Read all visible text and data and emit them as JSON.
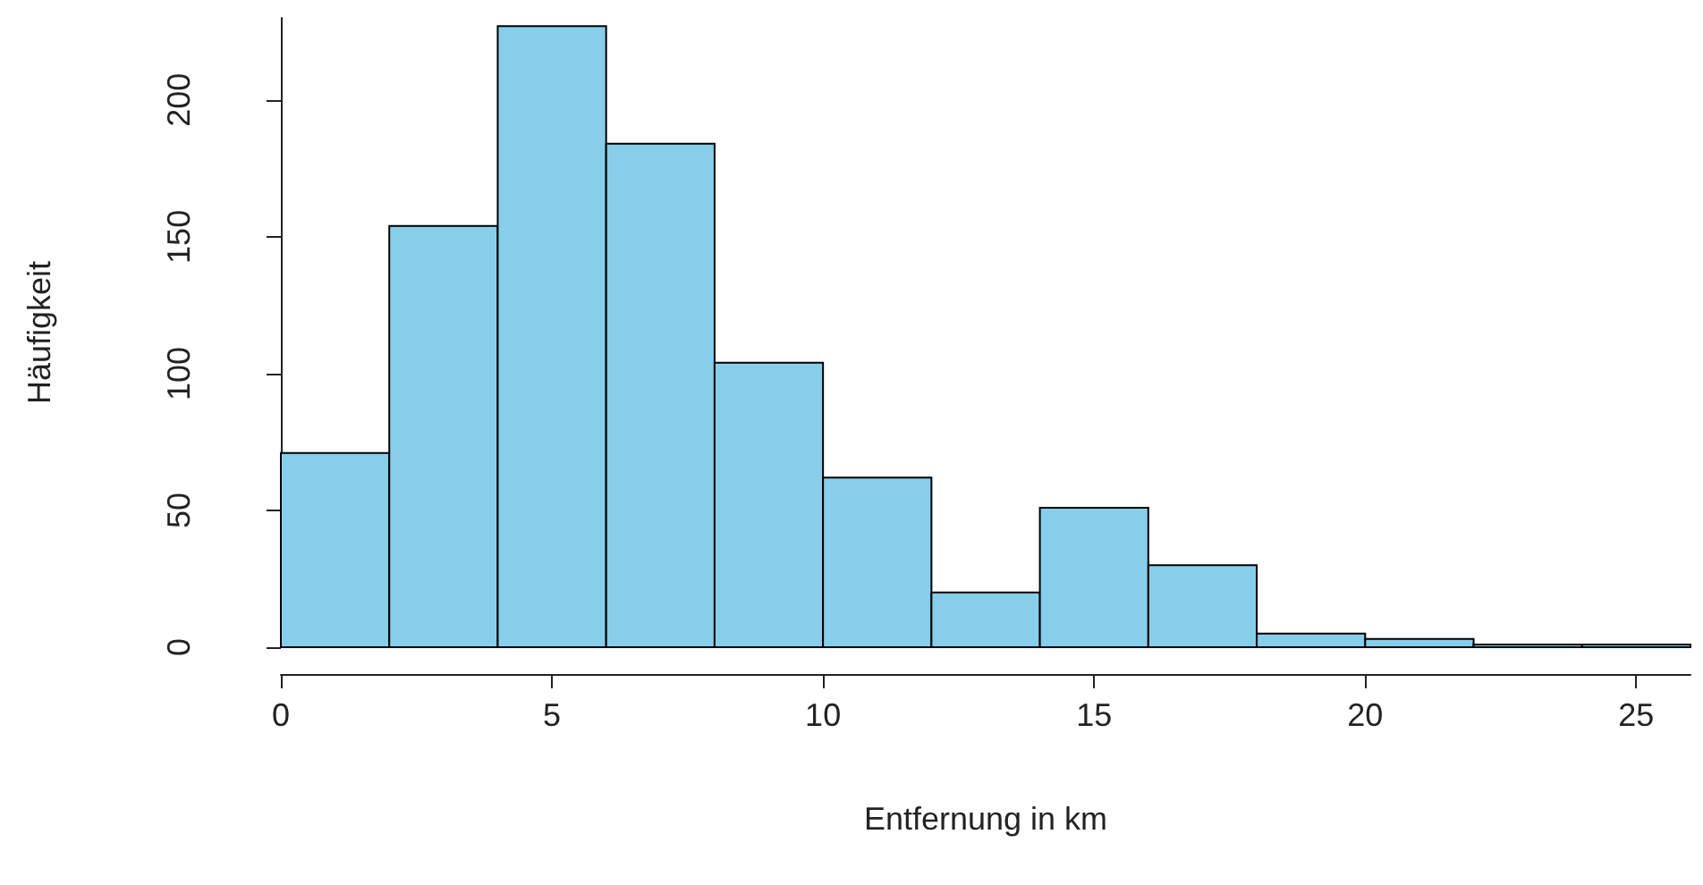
{
  "chart_data": {
    "type": "histogram",
    "xlabel": "Entfernung in km",
    "ylabel": "Häufigkeit",
    "bins": [
      0,
      2,
      4,
      6,
      8,
      10,
      12,
      14,
      16,
      18,
      20,
      22,
      24,
      26
    ],
    "values": [
      71,
      154,
      227,
      184,
      104,
      62,
      20,
      51,
      30,
      5,
      3,
      1,
      1
    ],
    "color": "#87ceeb",
    "xlim": [
      0,
      26
    ],
    "xticks": [
      0,
      5,
      10,
      15,
      20,
      25
    ],
    "ylim": [
      0,
      230
    ],
    "yticks": [
      0,
      50,
      100,
      150,
      200
    ],
    "grid": false
  }
}
